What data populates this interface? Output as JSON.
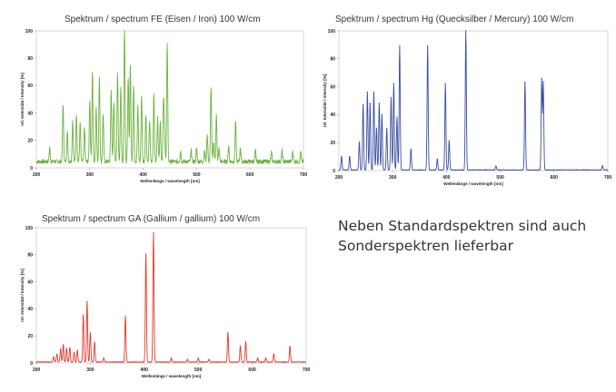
{
  "note": {
    "line1": "Neben Standardspektren sind auch",
    "line2": "Sonderspektren lieferbar"
  },
  "chart_data": [
    {
      "type": "line",
      "title": "Spektrum / spectrum FE (Eisen / Iron) 100 W/cm",
      "xlabel": "Wellenlänge / wavelength [nm]",
      "ylabel": "rel. Intensität / Intensity [%]",
      "xlim": [
        200,
        700
      ],
      "ylim": [
        0,
        100
      ],
      "xticks": [
        200,
        300,
        400,
        500,
        600,
        700
      ],
      "yticks": [
        0,
        20,
        40,
        60,
        80,
        100
      ],
      "grid": false,
      "color": "#6db33f",
      "baseline": 4,
      "noise": 3,
      "series": [
        {
          "x": [
            225,
            250,
            258,
            268,
            275,
            282,
            290,
            300,
            305,
            312,
            318,
            325,
            340,
            345,
            352,
            358,
            365,
            372,
            376,
            382,
            390,
            397,
            405,
            412,
            420,
            427,
            432,
            438,
            440,
            445,
            470,
            490,
            500,
            515,
            520,
            527,
            532,
            537,
            542,
            560,
            573,
            582,
            610,
            640,
            660,
            680,
            695
          ],
          "y": [
            10,
            42,
            22,
            30,
            35,
            28,
            25,
            45,
            66,
            40,
            62,
            35,
            52,
            44,
            66,
            55,
            100,
            62,
            70,
            55,
            40,
            48,
            35,
            30,
            50,
            32,
            30,
            45,
            20,
            86,
            8,
            8,
            10,
            8,
            20,
            55,
            15,
            34,
            10,
            12,
            30,
            10,
            8,
            7,
            8,
            8,
            7
          ]
        }
      ]
    },
    {
      "type": "line",
      "title": "Spektrum / spectrum Hg (Quecksilber / Mercury) 100 W/cm",
      "xlabel": "Wellenlänge / wavelength [nm]",
      "ylabel": "rel. Intensität / Intensity [%]",
      "xlim": [
        200,
        700
      ],
      "ylim": [
        0,
        100
      ],
      "xticks": [
        200,
        300,
        400,
        500,
        600,
        700
      ],
      "yticks": [
        0,
        20,
        40,
        60,
        80,
        100
      ],
      "grid": false,
      "color": "#3a4fa0",
      "baseline": 0.4,
      "noise": 0.4,
      "series": [
        {
          "x": [
            205,
            220,
            238,
            245,
            253,
            258,
            265,
            270,
            275,
            280,
            289,
            297,
            302,
            308,
            313,
            334,
            365,
            383,
            398,
            405,
            436,
            492,
            546,
            577,
            580,
            690
          ],
          "y": [
            10,
            10,
            20,
            47,
            56,
            48,
            56,
            30,
            48,
            40,
            30,
            52,
            62,
            38,
            89,
            15,
            89,
            8,
            62,
            21,
            100,
            3,
            63,
            65,
            63,
            3
          ]
        }
      ]
    },
    {
      "type": "line",
      "title": "Spektrum / spectrum GA (Gallium / gallium) 100 W/cm",
      "xlabel": "Wellenlänge / wavelength [nm]",
      "ylabel": "rel. Intensität / Intensity [%]",
      "xlim": [
        200,
        700
      ],
      "ylim": [
        0,
        100
      ],
      "xticks": [
        200,
        300,
        400,
        500,
        600,
        700
      ],
      "yticks": [
        0,
        20,
        40,
        60,
        80,
        100
      ],
      "grid": false,
      "color": "#e03a2a",
      "baseline": 0.6,
      "noise": 0.5,
      "series": [
        {
          "x": [
            232,
            238,
            245,
            250,
            256,
            262,
            270,
            276,
            287,
            294,
            300,
            308,
            325,
            365,
            403,
            417,
            450,
            480,
            500,
            520,
            555,
            578,
            588,
            610,
            625,
            640,
            670
          ],
          "y": [
            4,
            6,
            10,
            13,
            10,
            11,
            7,
            9,
            35,
            45,
            22,
            15,
            3,
            34,
            80,
            96,
            3,
            2,
            3,
            2,
            22,
            12,
            15,
            3,
            3,
            6,
            12
          ]
        }
      ]
    }
  ]
}
